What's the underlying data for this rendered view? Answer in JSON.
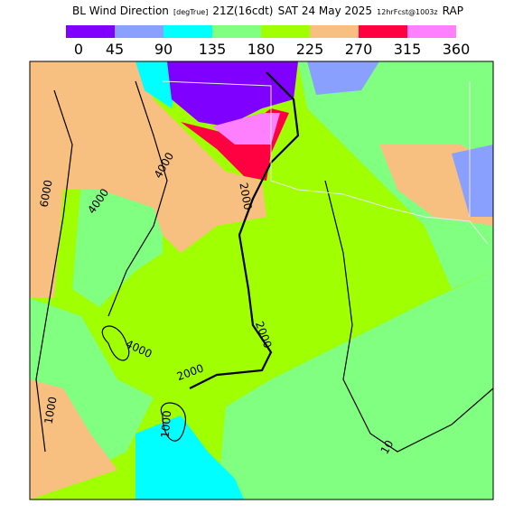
{
  "title": {
    "name": "BL Wind Direction",
    "units": "[degTrue]",
    "time": "21Z(16cdt)",
    "date": "SAT 24 May 2025",
    "forecast": "12hrFcst@1003z",
    "model": "RAP"
  },
  "colorbar": {
    "colors": [
      "#8000ff",
      "#8aa0ff",
      "#00ffff",
      "#80ff80",
      "#a0ff00",
      "#f8c080",
      "#ff0040",
      "#ff80ff"
    ],
    "labels": [
      0,
      45,
      90,
      135,
      180,
      225,
      270,
      315,
      360
    ]
  },
  "contour_labels": [
    "6000",
    "4000",
    "4000",
    "2000",
    "2000",
    "4000",
    "2000",
    "1000",
    "1000",
    "10"
  ]
}
